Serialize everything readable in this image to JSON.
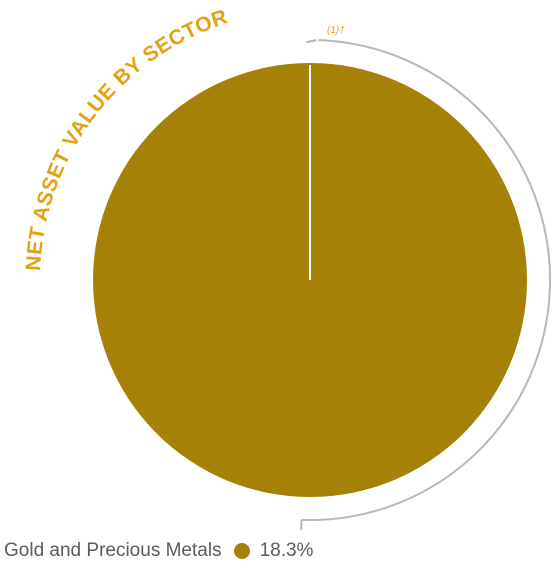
{
  "chart_data": {
    "type": "pie",
    "title": "Net Asset Value by Sector",
    "title_footnote": "(1)†",
    "slices": [
      {
        "label": "Gold and Precious Metals",
        "value": 18.3,
        "value_label": "18.3%",
        "color": "#a68108"
      }
    ],
    "legend": "bottom-left"
  },
  "colors": {
    "accent": "#a68108",
    "title": "#e3a214",
    "outline": "#b8b8b8",
    "text": "#5b5b5b"
  }
}
